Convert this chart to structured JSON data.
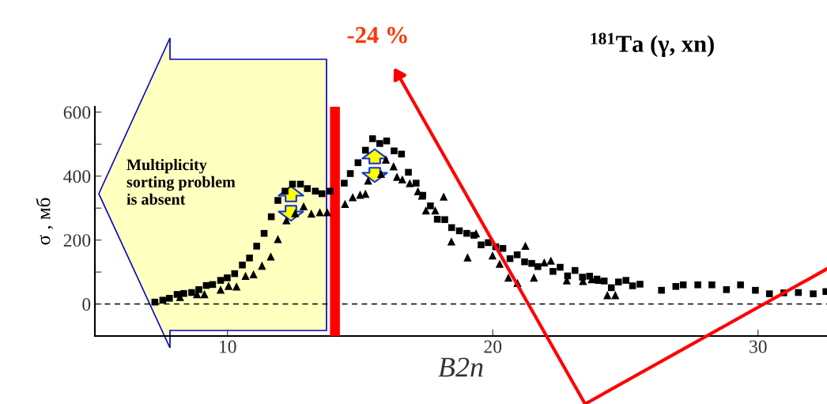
{
  "chart_data": {
    "type": "scatter",
    "title": "$^{181}$Ta (γ, xn)",
    "xlabel": "B2n",
    "ylabel": "σ , мб",
    "annotations": [
      "-24 %",
      "Multiplicity\nsorting problem\nis absent"
    ],
    "xlim": [
      5,
      32.6
    ],
    "ylim": [
      -100,
      617
    ],
    "xticks": [
      10,
      20,
      30
    ],
    "yticks": [
      0,
      {
        "value": 100,
        "label": null
      },
      200,
      {
        "value": 300,
        "label": null
      },
      400,
      {
        "value": 500,
        "label": null
      },
      600
    ],
    "grid": false,
    "legend": false,
    "ref_lines": [
      {
        "axis": "y",
        "value": 0,
        "color": "#000000",
        "line_style": "dashed"
      },
      {
        "axis": "x",
        "value": 14.05,
        "color": "#ff0000",
        "line_style": "solid"
      }
    ],
    "series": [
      {
        "color": "#000000",
        "marker": "square",
        "x": [
          7.26,
          7.56,
          7.81,
          8.1,
          8.35,
          8.65,
          8.92,
          9.2,
          9.44,
          9.74,
          9.99,
          10.27,
          10.56,
          10.83,
          11.1,
          11.38,
          11.65,
          11.9,
          12.17,
          12.45,
          12.75,
          13.01,
          13.31,
          13.56,
          13.86,
          14.4,
          14.63,
          14.92,
          15.2,
          15.47,
          15.74,
          16.0,
          16.28,
          16.56,
          16.82,
          17.11,
          17.36,
          17.65,
          17.91,
          18.19,
          18.45,
          18.74,
          19.02,
          19.29,
          19.56,
          19.83,
          20.11,
          20.38,
          20.65,
          20.92,
          21.2,
          21.47,
          21.7,
          22.27,
          22.54,
          22.82,
          23.1,
          23.38,
          23.65,
          23.93,
          24.2,
          24.47,
          24.74,
          25.02,
          25.27,
          25.55,
          26.36,
          26.9,
          27.18,
          27.73,
          28.26,
          28.81,
          29.34,
          29.9,
          30.43,
          30.97,
          31.52,
          32.08,
          32.56
        ],
        "values": [
          6,
          12,
          18,
          30,
          33,
          36,
          45,
          58,
          61,
          74,
          82,
          95,
          122,
          144,
          181,
          221,
          273,
          324,
          353,
          375,
          375,
          361,
          353,
          345,
          353,
          378,
          408,
          442,
          481,
          517,
          502,
          510,
          479,
          469,
          412,
          378,
          340,
          307,
          265,
          264,
          239,
          229,
          221,
          215,
          185,
          192,
          179,
          174,
          142,
          154,
          132,
          127,
          117,
          102,
          115,
          88,
          105,
          84,
          87,
          78,
          72,
          51,
          69,
          74,
          57,
          62,
          43,
          55,
          60,
          60,
          60,
          45,
          60,
          43,
          32,
          35,
          36,
          32,
          39
        ]
      },
      {
        "color": "#000000",
        "marker": "triangle",
        "x": [
          8.21,
          8.85,
          9.13,
          9.74,
          10.04,
          10.34,
          10.68,
          10.98,
          11.3,
          11.63,
          11.9,
          12.22,
          12.55,
          12.87,
          13.16,
          13.48,
          13.76,
          14.09,
          14.43,
          14.72,
          15.0,
          15.2,
          15.3,
          15.79,
          15.97,
          16.26,
          16.39,
          16.59,
          16.87,
          17.18,
          17.33,
          17.48,
          17.83,
          18.15,
          18.44,
          19.05,
          19.37,
          19.99,
          20.26,
          20.59,
          20.93,
          21.23,
          21.55,
          21.94,
          22.19,
          22.79,
          23.4,
          23.73,
          24.0,
          24.32,
          24.62
        ],
        "values": [
          22,
          31,
          31,
          45,
          57,
          55,
          88,
          93,
          120,
          149,
          203,
          262,
          284,
          306,
          283,
          287,
          287,
          null,
          313,
          334,
          342,
          345,
          386,
          407,
          452,
          431,
          398,
          390,
          378,
          353,
          339,
          293,
          293,
          336,
          196,
          146,
          221,
          152,
          126,
          83,
          66,
          182,
          83,
          130,
          136,
          74,
          72,
          78,
          76,
          28,
          28
        ]
      }
    ]
  }
}
